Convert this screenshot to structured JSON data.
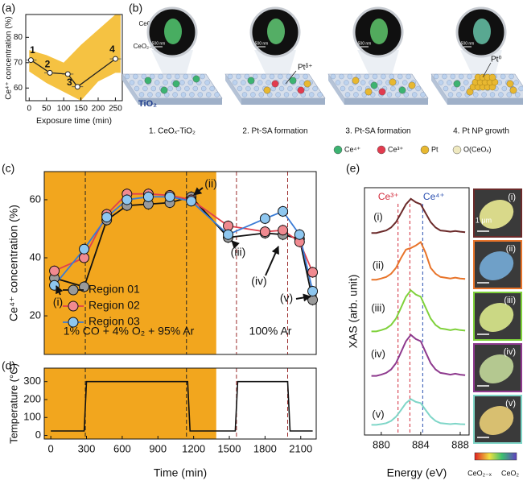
{
  "panel_labels": [
    "(a)",
    "(b)",
    "(c)",
    "(d)",
    "(e)"
  ],
  "schematic": {
    "colorbar_top": "CeO₂",
    "colorbar_bottom": "CeO₂₋ₓ",
    "scale_bars": [
      "500 nm",
      "500 nm",
      "500 nm",
      "500 nm"
    ],
    "pt_labels": [
      "Ptᵟ⁺",
      "Pt⁰"
    ],
    "substrate": "TiO₂",
    "steps": [
      "1. CeOₓ-TiO₂",
      "2. Pt-SA formation",
      "3. Pt-SA formation",
      "4. Pt NP growth"
    ],
    "legend": [
      "Ce⁴⁺",
      "Ce³⁺",
      "Pt",
      "O(CeOₓ)"
    ],
    "legend_colors": [
      "#3cb371",
      "#e23b4e",
      "#e8b830",
      "#efe9c0"
    ]
  },
  "chart_data": [
    {
      "type": "line",
      "xlabel": "Exposure time (min)",
      "ylabel": "Ce⁴⁺ concentration (%)",
      "x": [
        5,
        60,
        112,
        140,
        250
      ],
      "values": [
        71,
        66,
        65.5,
        60.5,
        71.5
      ],
      "color": "#222222",
      "point_labels": [
        "1",
        "2",
        null,
        "3",
        "4"
      ],
      "band_x": [
        0,
        50,
        100,
        150,
        200,
        250,
        265
      ],
      "band_upper": [
        75,
        73,
        70,
        77,
        83,
        89,
        89
      ],
      "band_lower": [
        66.5,
        62,
        58.5,
        55,
        62.6,
        66,
        66
      ],
      "band_color": "#f5c242",
      "xlim": [
        -10,
        270
      ],
      "ylim": [
        55,
        89
      ],
      "xticks": [
        0,
        50,
        100,
        150,
        200,
        250
      ],
      "yticks": [
        60,
        70,
        80
      ]
    },
    {
      "type": "line",
      "ylabel": "Ce⁴⁺ concentration (%)",
      "x": [
        30,
        280,
        470,
        640,
        820,
        1000,
        1180,
        1490,
        1800,
        1950,
        2090,
        2200
      ],
      "series": [
        {
          "name": "Region 01",
          "color": "#111111",
          "marker_color": "#9a9a9a",
          "values": [
            33,
            30,
            53,
            58,
            58.5,
            59,
            61,
            47,
            48.5,
            48,
            46.5,
            25.5
          ]
        },
        {
          "name": "Region 02",
          "color": "#e0404e",
          "marker_color": "#f08a90",
          "values": [
            35.5,
            40,
            55,
            62,
            62,
            61.5,
            60,
            51,
            49,
            49.5,
            45.5,
            35
          ]
        },
        {
          "name": "Region 03",
          "color": "#3a7bd5",
          "marker_color": "#8ec7f0",
          "values": [
            30.5,
            43,
            54,
            60,
            61,
            61,
            59.5,
            48,
            53.5,
            56,
            48,
            28.5
          ]
        }
      ],
      "shade": [
        -55,
        1390
      ],
      "shade_color": "#f2a61e",
      "vlines": [
        {
          "x": 290,
          "color": "#222222"
        },
        {
          "x": 1140,
          "color": "#222222"
        },
        {
          "x": 1560,
          "color": "#9b2d2d"
        },
        {
          "x": 1990,
          "color": "#9b2d2d"
        }
      ],
      "annotations": [
        "(i)",
        "(ii)",
        "(iii)",
        "(iv)",
        "(v)"
      ],
      "notes": [
        "1% CO + 4% O₂ + 95% Ar",
        "100% Ar"
      ],
      "xlim": [
        -55,
        2230
      ],
      "ylim": [
        6.7,
        69.7
      ],
      "yticks": [
        20,
        40,
        60
      ]
    },
    {
      "type": "line",
      "xlabel": "Time (min)",
      "ylabel": "Temperature (°C)",
      "x": [
        0,
        280,
        300,
        1150,
        1170,
        1550,
        1570,
        1990,
        2010,
        2200
      ],
      "values": [
        25,
        25,
        300,
        300,
        25,
        25,
        300,
        300,
        25,
        25
      ],
      "color": "#111111",
      "shade": [
        -55,
        1390
      ],
      "shade_color": "#f2a61e",
      "xlim": [
        -55,
        2230
      ],
      "ylim": [
        -20,
        375
      ],
      "xticks": [
        0,
        300,
        600,
        900,
        1200,
        1500,
        1800,
        2100
      ],
      "yticks": [
        0,
        100,
        200,
        300
      ]
    },
    {
      "type": "line",
      "xlabel": "Energy (eV)",
      "ylabel": "XAS (arb. unit)",
      "x": [
        879,
        879.5,
        880,
        880.5,
        881,
        881.5,
        882,
        882.5,
        883,
        883.5,
        884,
        884.5,
        885,
        885.5,
        886,
        886.5,
        887,
        887.5,
        888,
        888.5
      ],
      "series": [
        {
          "name": "(i)",
          "color": "#6b2a2a",
          "values": [
            8.17,
            8.17,
            8.22,
            8.27,
            8.39,
            8.61,
            8.97,
            9.33,
            9.55,
            9.41,
            9.33,
            8.97,
            8.61,
            8.39,
            8.27,
            8.25,
            8.22,
            8.25,
            8.22,
            8.2
          ]
        },
        {
          "name": "(ii)",
          "color": "#e8742a",
          "values": [
            6.28,
            6.28,
            6.33,
            6.39,
            6.52,
            6.76,
            7.16,
            7.5,
            7.56,
            7.66,
            7.8,
            7.36,
            6.76,
            6.52,
            6.39,
            6.36,
            6.33,
            6.36,
            6.33,
            6.31
          ]
        },
        {
          "name": "(iii)",
          "color": "#7fd13b",
          "values": [
            4.19,
            4.19,
            4.24,
            4.31,
            4.45,
            4.71,
            5.15,
            5.59,
            5.85,
            5.68,
            5.59,
            5.15,
            4.71,
            4.45,
            4.31,
            4.28,
            4.24,
            4.28,
            4.24,
            4.22
          ]
        },
        {
          "name": "(iv)",
          "color": "#8e3a8e",
          "values": [
            2.39,
            2.39,
            2.44,
            2.51,
            2.65,
            2.91,
            3.35,
            3.79,
            4.05,
            3.88,
            3.79,
            3.35,
            2.91,
            2.65,
            2.51,
            2.48,
            2.44,
            2.48,
            2.44,
            2.42
          ]
        },
        {
          "name": "(v)",
          "color": "#7fd6c8",
          "values": [
            0.41,
            0.41,
            0.44,
            0.48,
            0.57,
            0.74,
            1.01,
            1.29,
            1.45,
            1.34,
            1.29,
            1.01,
            0.74,
            0.57,
            0.48,
            0.46,
            0.44,
            0.46,
            0.44,
            0.43
          ]
        }
      ],
      "vlines": [
        {
          "x": 881.7,
          "color": "#d22a3a",
          "label": "Ce³⁺"
        },
        {
          "x": 882.9,
          "color": "#d22a3a"
        },
        {
          "x": 884.2,
          "color": "#2a4fb0",
          "label": "Ce⁴⁺"
        }
      ],
      "micrographs": {
        "scale_bar": "1 μm",
        "colorbar_labels": [
          "CeO₂₋ₓ",
          "CeO₂"
        ]
      },
      "xlim": [
        878.3,
        888.9
      ],
      "ylim": [
        0,
        10
      ],
      "xticks": [
        880,
        884,
        888
      ]
    }
  ]
}
